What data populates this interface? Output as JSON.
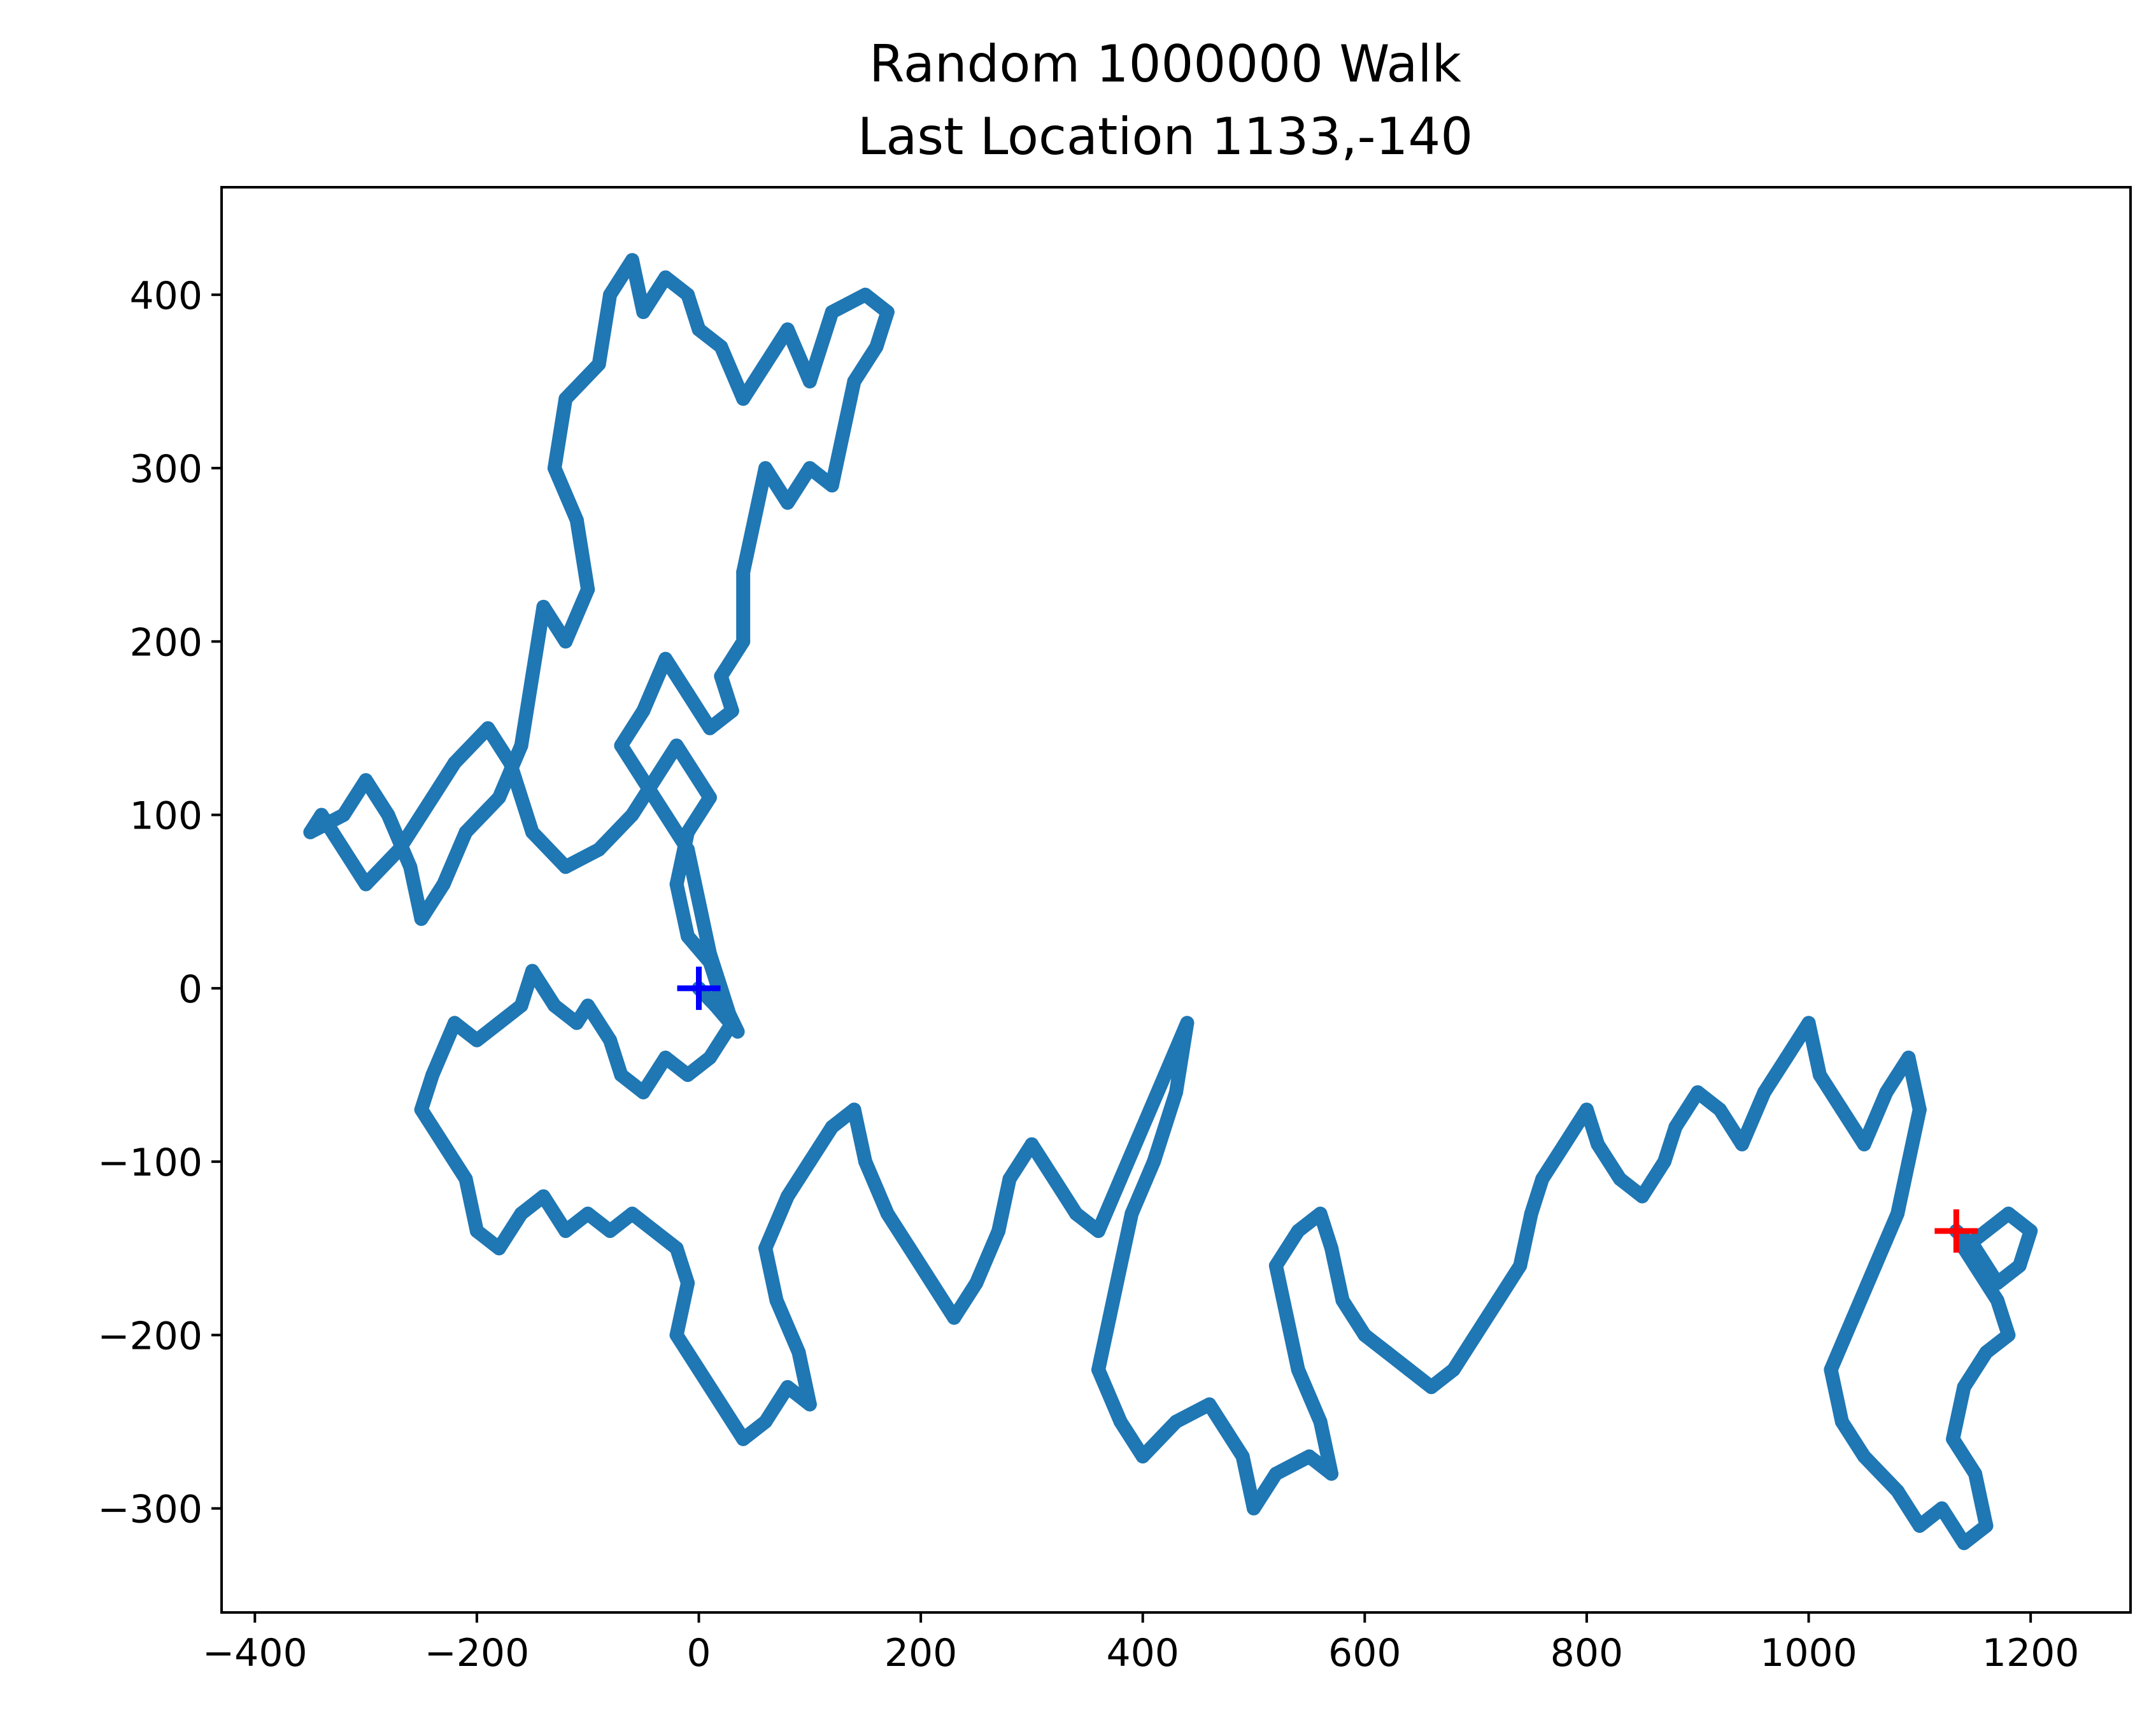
{
  "chart_data": {
    "type": "scatter",
    "title": "Random 1000000 Walk",
    "subtitle": "Last Location 1133,-140",
    "xlim": [
      -430,
      1290
    ],
    "ylim": [
      -360,
      462
    ],
    "x_ticks": [
      -400,
      -200,
      0,
      200,
      400,
      600,
      800,
      1000,
      1200
    ],
    "x_tick_labels": [
      "−400",
      "−200",
      "0",
      "200",
      "400",
      "600",
      "800",
      "1000",
      "1200"
    ],
    "y_ticks": [
      -300,
      -200,
      -100,
      0,
      100,
      200,
      300,
      400
    ],
    "y_tick_labels": [
      "−300",
      "−200",
      "−100",
      "0",
      "100",
      "200",
      "300",
      "400"
    ],
    "grid": false,
    "colors": {
      "walk": "#1f77b4",
      "start_marker": "#0000ff",
      "end_marker": "#ff0000",
      "axes": "#000000"
    },
    "series": [
      {
        "points": [
          [
            0,
            0
          ],
          [
            15,
            -10
          ],
          [
            35,
            -25
          ],
          [
            20,
            -5
          ],
          [
            10,
            15
          ],
          [
            -10,
            30
          ],
          [
            -20,
            60
          ],
          [
            -10,
            90
          ],
          [
            10,
            110
          ],
          [
            -20,
            140
          ],
          [
            -40,
            120
          ],
          [
            -60,
            100
          ],
          [
            -90,
            80
          ],
          [
            -120,
            70
          ],
          [
            -150,
            90
          ],
          [
            -170,
            130
          ],
          [
            -190,
            150
          ],
          [
            -220,
            130
          ],
          [
            -240,
            110
          ],
          [
            -270,
            80
          ],
          [
            -300,
            60
          ],
          [
            -320,
            80
          ],
          [
            -340,
            100
          ],
          [
            -350,
            90
          ],
          [
            -320,
            100
          ],
          [
            -300,
            120
          ],
          [
            -280,
            100
          ],
          [
            -260,
            70
          ],
          [
            -250,
            40
          ],
          [
            -230,
            60
          ],
          [
            -210,
            90
          ],
          [
            -180,
            110
          ],
          [
            -160,
            140
          ],
          [
            -150,
            180
          ],
          [
            -140,
            220
          ],
          [
            -120,
            200
          ],
          [
            -100,
            230
          ],
          [
            -110,
            270
          ],
          [
            -130,
            300
          ],
          [
            -120,
            340
          ],
          [
            -90,
            360
          ],
          [
            -80,
            400
          ],
          [
            -60,
            420
          ],
          [
            -50,
            390
          ],
          [
            -30,
            410
          ],
          [
            -10,
            400
          ],
          [
            0,
            380
          ],
          [
            20,
            370
          ],
          [
            40,
            340
          ],
          [
            60,
            360
          ],
          [
            80,
            380
          ],
          [
            100,
            350
          ],
          [
            120,
            390
          ],
          [
            150,
            400
          ],
          [
            170,
            390
          ],
          [
            160,
            370
          ],
          [
            140,
            350
          ],
          [
            130,
            320
          ],
          [
            120,
            290
          ],
          [
            100,
            300
          ],
          [
            80,
            280
          ],
          [
            60,
            300
          ],
          [
            50,
            270
          ],
          [
            40,
            240
          ],
          [
            40,
            200
          ],
          [
            20,
            180
          ],
          [
            30,
            160
          ],
          [
            10,
            150
          ],
          [
            -10,
            170
          ],
          [
            -30,
            190
          ],
          [
            -50,
            160
          ],
          [
            -70,
            140
          ],
          [
            -50,
            120
          ],
          [
            -30,
            100
          ],
          [
            -10,
            80
          ],
          [
            0,
            50
          ],
          [
            10,
            20
          ],
          [
            20,
            0
          ],
          [
            30,
            -20
          ],
          [
            10,
            -40
          ],
          [
            -10,
            -50
          ],
          [
            -30,
            -40
          ],
          [
            -50,
            -60
          ],
          [
            -70,
            -50
          ],
          [
            -80,
            -30
          ],
          [
            -100,
            -10
          ],
          [
            -110,
            -20
          ],
          [
            -130,
            -10
          ],
          [
            -150,
            10
          ],
          [
            -160,
            -10
          ],
          [
            -180,
            -20
          ],
          [
            -200,
            -30
          ],
          [
            -220,
            -20
          ],
          [
            -240,
            -50
          ],
          [
            -250,
            -70
          ],
          [
            -230,
            -90
          ],
          [
            -210,
            -110
          ],
          [
            -200,
            -140
          ],
          [
            -180,
            -150
          ],
          [
            -160,
            -130
          ],
          [
            -140,
            -120
          ],
          [
            -120,
            -140
          ],
          [
            -100,
            -130
          ],
          [
            -80,
            -140
          ],
          [
            -60,
            -130
          ],
          [
            -40,
            -140
          ],
          [
            -20,
            -150
          ],
          [
            -10,
            -170
          ],
          [
            -20,
            -200
          ],
          [
            0,
            -220
          ],
          [
            20,
            -240
          ],
          [
            40,
            -260
          ],
          [
            60,
            -250
          ],
          [
            80,
            -230
          ],
          [
            100,
            -240
          ],
          [
            90,
            -210
          ],
          [
            70,
            -180
          ],
          [
            60,
            -150
          ],
          [
            80,
            -120
          ],
          [
            100,
            -100
          ],
          [
            120,
            -80
          ],
          [
            140,
            -70
          ],
          [
            150,
            -100
          ],
          [
            170,
            -130
          ],
          [
            190,
            -150
          ],
          [
            210,
            -170
          ],
          [
            230,
            -190
          ],
          [
            250,
            -170
          ],
          [
            270,
            -140
          ],
          [
            280,
            -110
          ],
          [
            300,
            -90
          ],
          [
            320,
            -110
          ],
          [
            340,
            -130
          ],
          [
            360,
            -140
          ],
          [
            380,
            -110
          ],
          [
            400,
            -80
          ],
          [
            420,
            -50
          ],
          [
            440,
            -20
          ],
          [
            430,
            -60
          ],
          [
            410,
            -100
          ],
          [
            390,
            -130
          ],
          [
            380,
            -160
          ],
          [
            370,
            -190
          ],
          [
            360,
            -220
          ],
          [
            380,
            -250
          ],
          [
            400,
            -270
          ],
          [
            430,
            -250
          ],
          [
            460,
            -240
          ],
          [
            490,
            -270
          ],
          [
            500,
            -300
          ],
          [
            520,
            -280
          ],
          [
            550,
            -270
          ],
          [
            570,
            -280
          ],
          [
            560,
            -250
          ],
          [
            540,
            -220
          ],
          [
            530,
            -190
          ],
          [
            520,
            -160
          ],
          [
            540,
            -140
          ],
          [
            560,
            -130
          ],
          [
            570,
            -150
          ],
          [
            580,
            -180
          ],
          [
            600,
            -200
          ],
          [
            620,
            -210
          ],
          [
            640,
            -220
          ],
          [
            660,
            -230
          ],
          [
            680,
            -220
          ],
          [
            700,
            -200
          ],
          [
            720,
            -180
          ],
          [
            740,
            -160
          ],
          [
            750,
            -130
          ],
          [
            760,
            -110
          ],
          [
            780,
            -90
          ],
          [
            800,
            -70
          ],
          [
            810,
            -90
          ],
          [
            830,
            -110
          ],
          [
            850,
            -120
          ],
          [
            870,
            -100
          ],
          [
            880,
            -80
          ],
          [
            900,
            -60
          ],
          [
            920,
            -70
          ],
          [
            940,
            -90
          ],
          [
            960,
            -60
          ],
          [
            980,
            -40
          ],
          [
            1000,
            -20
          ],
          [
            1010,
            -50
          ],
          [
            1030,
            -70
          ],
          [
            1050,
            -90
          ],
          [
            1070,
            -60
          ],
          [
            1090,
            -40
          ],
          [
            1100,
            -70
          ],
          [
            1090,
            -100
          ],
          [
            1080,
            -130
          ],
          [
            1060,
            -160
          ],
          [
            1040,
            -190
          ],
          [
            1020,
            -220
          ],
          [
            1030,
            -250
          ],
          [
            1050,
            -270
          ],
          [
            1080,
            -290
          ],
          [
            1100,
            -310
          ],
          [
            1120,
            -300
          ],
          [
            1140,
            -320
          ],
          [
            1160,
            -310
          ],
          [
            1150,
            -280
          ],
          [
            1130,
            -260
          ],
          [
            1140,
            -230
          ],
          [
            1160,
            -210
          ],
          [
            1180,
            -200
          ],
          [
            1170,
            -180
          ],
          [
            1150,
            -160
          ],
          [
            1140,
            -150
          ],
          [
            1160,
            -140
          ],
          [
            1180,
            -130
          ],
          [
            1200,
            -140
          ],
          [
            1190,
            -160
          ],
          [
            1170,
            -170
          ],
          [
            1150,
            -150
          ],
          [
            1133,
            -140
          ]
        ]
      }
    ],
    "start_point": [
      0,
      0
    ],
    "last_point": [
      1133,
      -140
    ]
  }
}
